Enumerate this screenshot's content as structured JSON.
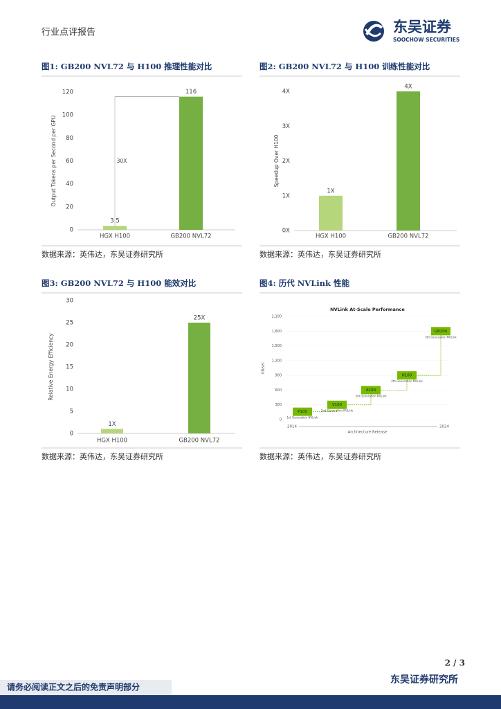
{
  "header": {
    "report_type": "行业点评报告",
    "logo_cn": "东吴证券",
    "logo_en": "SOOCHOW SECURITIES"
  },
  "figures": [
    {
      "title": "图1:  GB200 NVL72 与 H100 推理性能对比",
      "source": "数据来源：英伟达，东吴证券研究所",
      "chart": {
        "type": "bar",
        "y_label": "Output Tokens per Second per GPU",
        "categories": [
          "HGX H100",
          "GB200 NVL72"
        ],
        "values": [
          3.5,
          116
        ],
        "colors": [
          "#b5d67a",
          "#76b042"
        ],
        "ylim": [
          0,
          120
        ],
        "yticks": [
          0,
          20,
          40,
          60,
          80,
          100,
          120
        ],
        "annotation": "30X"
      }
    },
    {
      "title": "图2:  GB200 NVL72 与 H100 训练性能对比",
      "source": "数据来源：英伟达，东吴证券研究所",
      "chart": {
        "type": "bar",
        "y_label": "Speedup Over H100",
        "categories": [
          "HGX H100",
          "GB200 NVL72"
        ],
        "values": [
          1,
          4
        ],
        "value_labels": [
          "1X",
          "4X"
        ],
        "colors": [
          "#b5d67a",
          "#76b042"
        ],
        "ylim": [
          0,
          4
        ],
        "yticks": [
          {
            "value": 0,
            "label": "0X"
          },
          {
            "value": 1,
            "label": "1X"
          },
          {
            "value": 2,
            "label": "2X"
          },
          {
            "value": 3,
            "label": "3X"
          },
          {
            "value": 4,
            "label": "4X"
          }
        ]
      }
    },
    {
      "title": "图3:  GB200 NVL72 与 H100 能效对比",
      "source": "数据来源：英伟达，东吴证券研究所",
      "chart": {
        "type": "bar",
        "y_label": "Relative Energy Efficiency",
        "categories": [
          "HGX H100",
          "GB200 NVL72"
        ],
        "values": [
          1,
          25
        ],
        "value_labels": [
          "1X",
          "25X"
        ],
        "colors": [
          "#b5d67a",
          "#76b042"
        ],
        "ylim": [
          0,
          30
        ],
        "yticks": [
          0,
          5,
          10,
          15,
          20,
          25,
          30
        ]
      }
    },
    {
      "title": "图4:  历代 NVLink 性能",
      "source": "数据来源：英伟达，东吴证券研究所",
      "chart": {
        "type": "step",
        "title": "NVLink At-Scale Performance",
        "y_label": "GB/sec",
        "x_label": "Architecture Release",
        "x_end_labels": [
          2014,
          2024
        ],
        "categories": [
          "P100",
          "V100",
          "A100",
          "H100",
          "GB200"
        ],
        "notes": [
          "1st Generation NVLink",
          "2nd Generation NVLink",
          "3rd Generation NVLink",
          "4th Generation NVLink",
          "5th Generation NVLink"
        ],
        "values": [
          160,
          300,
          600,
          900,
          1800
        ],
        "color": "#76b900",
        "ylim": [
          0,
          2100
        ],
        "yticks": [
          0,
          {
            "value": 300,
            "label": "300"
          },
          {
            "value": 600,
            "label": "600"
          },
          {
            "value": 900,
            "label": "900"
          },
          {
            "value": 1200,
            "label": "1,200"
          },
          {
            "value": 1500,
            "label": "1,500"
          },
          {
            "value": 1800,
            "label": "1,800"
          },
          {
            "value": 2100,
            "label": "2,100"
          }
        ]
      }
    }
  ],
  "footer": {
    "page": "2 / 3",
    "institute": "东吴证券研究所",
    "disclaimer": "请务必阅读正文之后的免责声明部分"
  }
}
